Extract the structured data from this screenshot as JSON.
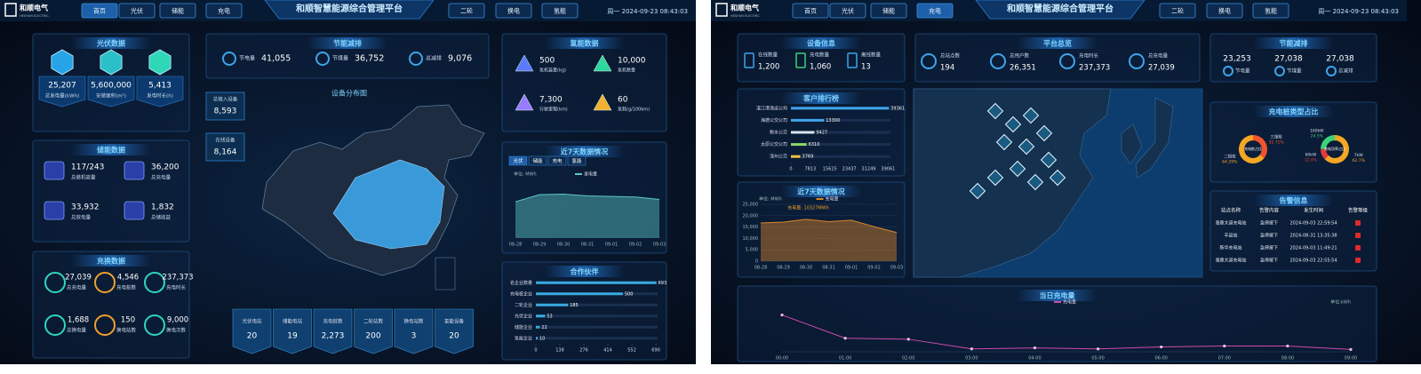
{
  "screens": [
    {
      "header": {
        "logo": "和顺电气",
        "logo_en": "HESHUN ELECTRIC",
        "nav_left": [
          "首页",
          "光伏",
          "储能",
          "充电"
        ],
        "title": "和顺智慧能源综合管理平台",
        "nav_right": [
          "二轮",
          "换电",
          "氢能"
        ],
        "datetime": "周一 2024-09-23 08:43:03",
        "active": 0
      },
      "pv": {
        "title": "光伏数据",
        "items": [
          {
            "value": "25,207",
            "label": "总发电量(kWh)"
          },
          {
            "value": "5,600,000",
            "label": "安装面积(m²)"
          },
          {
            "value": "5,413",
            "label": "发电时长(h)"
          }
        ]
      },
      "storage": {
        "title": "储能数据",
        "items": [
          {
            "value": "117/243",
            "label": "总装机容量"
          },
          {
            "value": "36,200",
            "label": "总充电量"
          },
          {
            "value": "33,932",
            "label": "总放电量"
          },
          {
            "value": "1,832",
            "label": "总储收益"
          }
        ]
      },
      "charging": {
        "title": "充换数据",
        "items": [
          {
            "value": "27,039",
            "label": "总充电量"
          },
          {
            "value": "4,546",
            "label": "充电桩数"
          },
          {
            "value": "237,373",
            "label": "充电时长"
          },
          {
            "value": "1,688",
            "label": "总换电量"
          },
          {
            "value": "150",
            "label": "换电站数"
          },
          {
            "value": "9,000",
            "label": "换电次数"
          }
        ]
      },
      "saving": {
        "title": "节能减排",
        "items": [
          {
            "label": "节电量",
            "value": "41,055"
          },
          {
            "label": "节煤量",
            "value": "36,752"
          },
          {
            "label": "总减排",
            "value": "9,076"
          }
        ]
      },
      "map": {
        "title": "设备分布图",
        "stats": [
          {
            "label": "总接入设备",
            "value": "8,593"
          },
          {
            "label": "在线设备",
            "value": "8,164"
          }
        ]
      },
      "sites": [
        {
          "label": "光伏电站",
          "value": "20"
        },
        {
          "label": "储能电站",
          "value": "19"
        },
        {
          "label": "充电桩数",
          "value": "2,273"
        },
        {
          "label": "二轮站数",
          "value": "200"
        },
        {
          "label": "换电站数",
          "value": "3"
        },
        {
          "label": "氢能设备",
          "value": "20"
        }
      ],
      "hydrogen": {
        "title": "氢能数据",
        "items": [
          {
            "value": "500",
            "label": "氢机装量(kg)"
          },
          {
            "value": "10,000",
            "label": "氢机数量"
          },
          {
            "value": "7,300",
            "label": "行驶里程(km)"
          },
          {
            "value": "60",
            "label": "氢耗(g/100km)"
          }
        ]
      },
      "week": {
        "title": "近7天数据情况",
        "tabs": [
          "光伏",
          "储能",
          "充电",
          "氢能"
        ],
        "chart": {
          "type": "area",
          "unit": "单位: MWh",
          "categories": [
            "08-28",
            "08-29",
            "08-30",
            "08-31",
            "09-01",
            "09-02",
            "09-03"
          ],
          "series": [
            {
              "name": "发电量",
              "color": "#5cc8c8",
              "values": [
                62,
                74,
                75,
                72,
                71,
                70,
                66
              ]
            }
          ],
          "ylim": [
            0,
            100
          ]
        }
      },
      "partners": {
        "title": "合作伙伴",
        "chart": {
          "type": "hbar",
          "categories": [
            "名企业数量",
            "充电桩企业",
            "二轮企业",
            "光伏企业",
            "储能企业",
            "氢能企业"
          ],
          "values": [
            693,
            500,
            185,
            53,
            22,
            10
          ],
          "color": "#39a9e0",
          "xlim": [
            0,
            700
          ],
          "xticks": [
            0,
            138,
            276,
            414,
            552,
            690
          ]
        }
      }
    },
    {
      "header": {
        "logo": "和顺电气",
        "logo_en": "HESHUN ELECTRIC",
        "nav_left": [
          "首页",
          "光伏",
          "储能",
          "充电"
        ],
        "title": "和顺智慧能源综合管理平台",
        "nav_right": [
          "二轮",
          "换电",
          "氢能"
        ],
        "datetime": "周一 2024-09-23 08:43:03",
        "active": 3
      },
      "devices": {
        "title": "设备信息",
        "items": [
          {
            "label": "在线数量",
            "value": "1,200"
          },
          {
            "label": "充电数量",
            "value": "1,060"
          },
          {
            "label": "离线数量",
            "value": "13"
          }
        ]
      },
      "overview": {
        "title": "平台总览",
        "items": [
          {
            "label": "总站点数",
            "value": "194"
          },
          {
            "label": "总用户数",
            "value": "26,351"
          },
          {
            "label": "充电时长",
            "value": "237,373"
          },
          {
            "label": "总充电量",
            "value": "27,039"
          }
        ]
      },
      "saving": {
        "title": "节能减排",
        "items": [
          {
            "value": "23,253",
            "label": "节电量"
          },
          {
            "value": "27,038",
            "label": "节煤量"
          },
          {
            "value": "27,038",
            "label": "总减排"
          }
        ]
      },
      "ranking": {
        "title": "客户排行榜",
        "chart": {
          "type": "hbar",
          "categories": [
            "湛江港海运公司",
            "海德公交公司",
            "衡水公交",
            "太原公交公司",
            "漳州公交"
          ],
          "values": [
            39361,
            13300,
            9427,
            6310,
            3769
          ],
          "colors": [
            "#3fa4ea",
            "#3fa4ea",
            "#d8e4f0",
            "#8fd66a",
            "#f0c040"
          ],
          "xlim": [
            0,
            40000
          ],
          "xticks": [
            0,
            7813,
            15625,
            23437,
            31249,
            39061
          ]
        }
      },
      "week": {
        "title": "近7天数据情况",
        "chart": {
          "type": "area",
          "unit": "单位: MWh",
          "annotation": "充电量: 10327MWh",
          "categories": [
            "08-28",
            "08-29",
            "08-30",
            "08-31",
            "09-01",
            "09-02",
            "09-03"
          ],
          "series": [
            {
              "name": "充电量",
              "color": "#d9852a",
              "values": [
                16800,
                17200,
                18400,
                17400,
                18000,
                15200,
                12600
              ]
            }
          ],
          "ylim": [
            0,
            25000
          ],
          "yticks": [
            0,
            {
              "value": 5000,
              "label": "5,000"
            },
            {
              "value": 10000,
              "label": "10,000"
            },
            {
              "value": 15000,
              "label": "15,000"
            },
            {
              "value": 20000,
              "label": "20,000"
            },
            {
              "value": 25000,
              "label": "25,000"
            }
          ]
        }
      },
      "types": {
        "title": "充电桩类型占比",
        "charts": [
          {
            "type": "pie",
            "center": "充电桩占比",
            "categories": [
              "三相桩",
              "二相桩"
            ],
            "values": [
              35.71,
              64.29
            ],
            "value_labels": [
              "35.71%",
              "64.29%"
            ],
            "colors": [
              "#f0542e",
              "#f5a623"
            ]
          },
          {
            "type": "pie",
            "center": "充电功率占比",
            "categories": [
              "7kW",
              "60kW",
              "160kW"
            ],
            "values": [
              62.7,
              12.8,
              24.5
            ],
            "value_labels": [
              "62.7%",
              "12.8%",
              "24.5%"
            ],
            "colors": [
              "#f5a623",
              "#e23a3a",
              "#3bd47a"
            ]
          }
        ]
      },
      "alarms": {
        "title": "告警信息",
        "columns": [
          "站点名称",
          "告警内容",
          "发生时间",
          "告警等级"
        ],
        "rows": [
          [
            "海鼎大道充电站",
            "急停按下",
            "2024-09-03 22:59:54"
          ],
          [
            "丰县站",
            "急停按下",
            "2024-08-31 13:35:38"
          ],
          [
            "新华充电站",
            "急停按下",
            "2024-09-03 11:49:21"
          ],
          [
            "海鼎大道充电站",
            "急停按下",
            "2024-09-03 22:55:54"
          ]
        ]
      },
      "today": {
        "title": "当日充电量",
        "chart": {
          "type": "line",
          "unit": "单位:kWh",
          "categories": [
            "00:00",
            "01:00",
            "02:00",
            "03:00",
            "04:00",
            "05:00",
            "06:00",
            "07:00",
            "08:00",
            "09:00"
          ],
          "series": [
            {
              "name": "充电量",
              "color": "#d04ab0",
              "values": [
                19,
                7,
                6.5,
                1.5,
                2,
                1.5,
                2.5,
                3,
                3,
                1.2
              ]
            }
          ],
          "ylim": [
            0,
            22
          ]
        }
      }
    }
  ]
}
